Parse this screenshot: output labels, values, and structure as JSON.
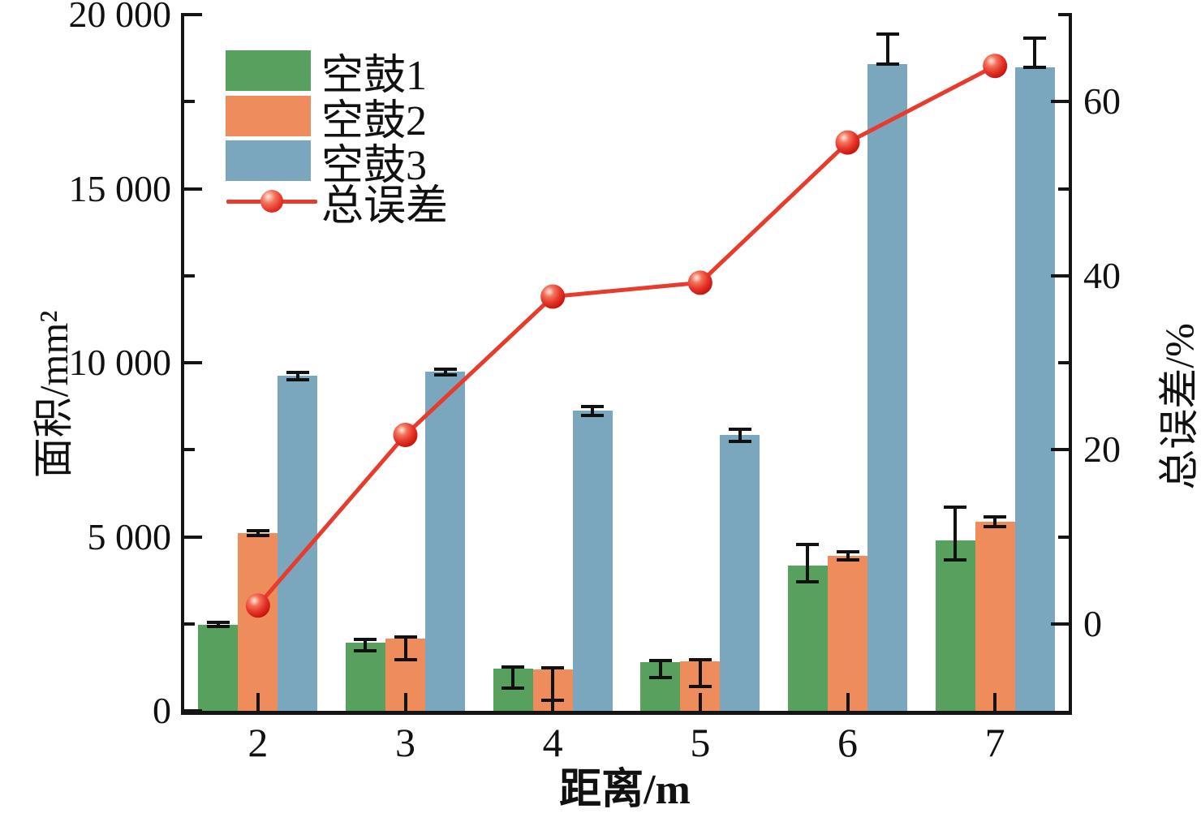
{
  "chart_data": {
    "type": "bar+line",
    "title": "",
    "xlabel": "距离/m",
    "ylabel_left": "面积/mm²",
    "ylabel_right": "总误差/%",
    "categories": [
      "2",
      "3",
      "4",
      "5",
      "6",
      "7"
    ],
    "left_axis": {
      "min": 0,
      "max": 20000,
      "major_ticks": [
        0,
        5000,
        10000,
        15000,
        20000
      ],
      "tick_labels": [
        "0",
        "5 000",
        "10 000",
        "15 000",
        "20 000"
      ],
      "minor_step": 2500
    },
    "right_axis": {
      "min": -10,
      "max": 70,
      "major_ticks": [
        0,
        20,
        40,
        60
      ],
      "tick_labels": [
        "0",
        "20",
        "40",
        "60"
      ],
      "minor_step": 10
    },
    "series": [
      {
        "name": "空鼓1",
        "type": "bar",
        "axis": "left",
        "color": "#57a05d",
        "values": [
          2470,
          1960,
          1210,
          1400,
          4170,
          4900
        ],
        "err_lo": [
          2420,
          1725,
          660,
          950,
          3710,
          4340
        ],
        "err_hi": [
          2530,
          2050,
          1260,
          1450,
          4790,
          5850
        ]
      },
      {
        "name": "空鼓2",
        "type": "bar",
        "axis": "left",
        "color": "#ee8c5b",
        "values": [
          5100,
          2070,
          1190,
          1420,
          4450,
          5430
        ],
        "err_lo": [
          5030,
          1470,
          300,
          700,
          4330,
          5300
        ],
        "err_hi": [
          5170,
          2120,
          1230,
          1460,
          4570,
          5560
        ]
      },
      {
        "name": "空鼓3",
        "type": "bar",
        "axis": "left",
        "color": "#7aa7bd",
        "values": [
          9630,
          9740,
          8620,
          7930,
          18580,
          18490
        ],
        "err_lo": [
          9510,
          9650,
          8480,
          7750,
          18580,
          18490
        ],
        "err_hi": [
          9720,
          9820,
          8730,
          8080,
          19440,
          19320
        ]
      },
      {
        "name": "总误差",
        "type": "line",
        "axis": "right",
        "color": "#e73b2c",
        "values": [
          2.1,
          21.7,
          37.6,
          39.2,
          55.3,
          64.1
        ]
      }
    ],
    "legend_position": "top-left-inside",
    "grid": false
  }
}
